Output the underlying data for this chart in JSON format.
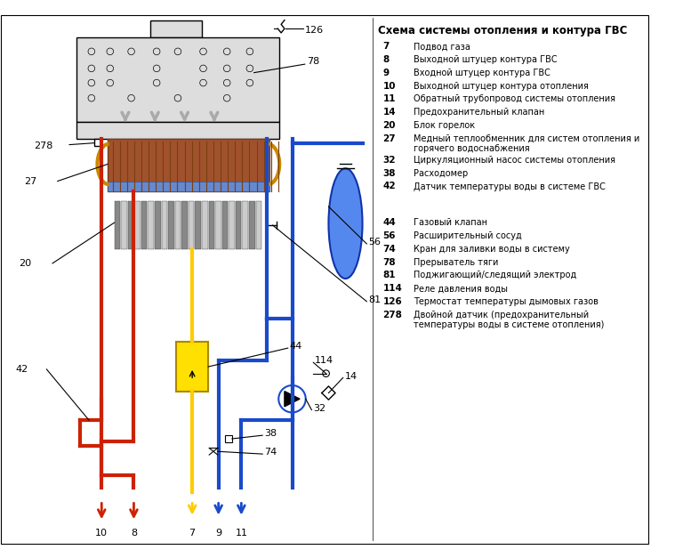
{
  "title": "Схема системы отопления и контура ГВС",
  "legend_group1": [
    [
      "7",
      "Подвод газа"
    ],
    [
      "8",
      "Выходной штуцер контура ГВС"
    ],
    [
      "9",
      "Входной штуцер контура ГВС"
    ],
    [
      "10",
      "Выходной штуцер контура отопления"
    ],
    [
      "11",
      "Обратный трубопровод системы отопления"
    ],
    [
      "14",
      "Предохранительный клапан"
    ],
    [
      "20",
      "Блок горелок"
    ],
    [
      "27",
      "Медный теплообменник для систем отопления и\nгорячего водоснабжения"
    ],
    [
      "32",
      "Циркуляционный насос системы отопления"
    ],
    [
      "38",
      "Расходомер"
    ],
    [
      "42",
      "Датчик температуры воды в системе ГВС"
    ]
  ],
  "legend_group2": [
    [
      "44",
      "Газовый клапан"
    ],
    [
      "56",
      "Расширительный сосуд"
    ],
    [
      "74",
      "Кран для заливки воды в систему"
    ],
    [
      "78",
      "Прерыватель тяги"
    ],
    [
      "81",
      "Поджигающий/следящий электрод"
    ],
    [
      "114",
      "Реле давления воды"
    ],
    [
      "126",
      "Термостат температуры дымовых газов"
    ],
    [
      "278",
      "Двойной датчик (предохранительный\nтемпературы воды в системе отопления)"
    ]
  ],
  "colors": {
    "red": "#CC2200",
    "blue": "#1A4ACC",
    "yellow": "#FFCC00",
    "gray": "#AAAAAA",
    "dgray": "#666666",
    "black": "#000000",
    "white": "#FFFFFF",
    "hx_brown": "#7B3F10",
    "hx_fill": "#A0522D",
    "boiler_bg": "#DDDDDD",
    "gas_valve": "#FFE000",
    "exp_blue": "#5588EE"
  },
  "lw_pipe": 3.0,
  "lw_thin": 0.8,
  "fontsize_label": 7.5,
  "fontsize_num": 7.5
}
